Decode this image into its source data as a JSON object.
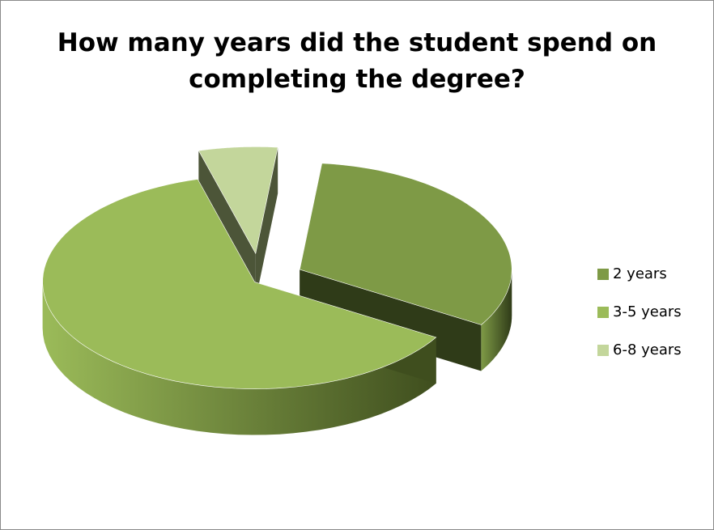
{
  "chart_data": {
    "type": "pie",
    "title": "How many years did the student spend on completing the degree?",
    "title_lines": [
      "How many years did the student spend on",
      "completing the degree?"
    ],
    "style": "3d-exploded",
    "categories": [
      "2 years",
      "3-5 years",
      "6-8 years"
    ],
    "values": [
      32,
      62,
      6
    ],
    "colors": [
      "#7E9A46",
      "#9BBB59",
      "#C3D69B"
    ],
    "side_colors": [
      "#2F3B18",
      "#3F4E1E",
      "#4C5538"
    ],
    "legend_position": "right"
  }
}
